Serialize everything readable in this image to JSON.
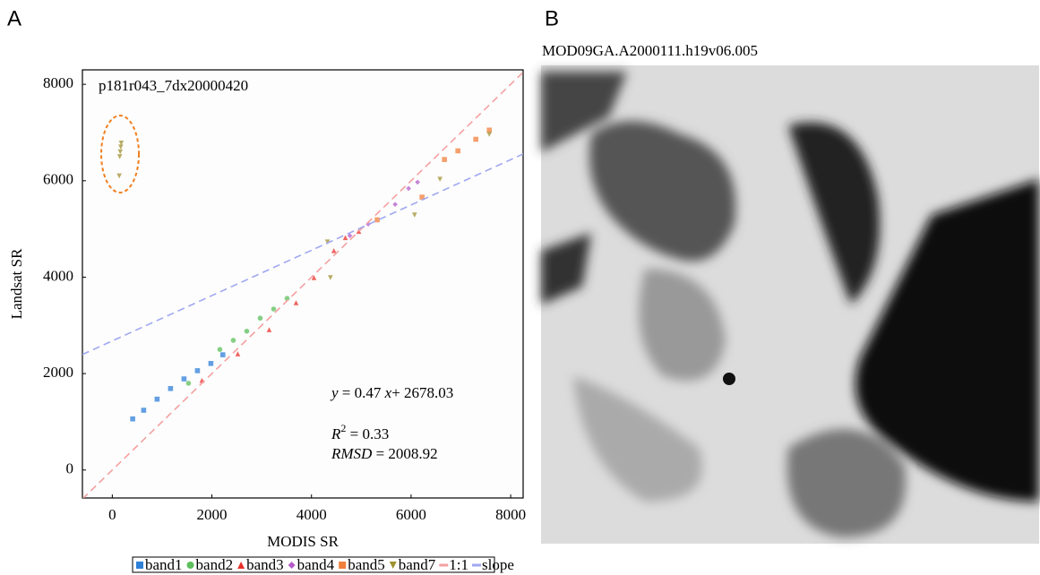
{
  "panels": {
    "a_label": "A",
    "b_label": "B"
  },
  "chart_data": {
    "type": "scatter",
    "annotation": "p181r043_7dx20000420",
    "xlabel": "MODIS SR",
    "ylabel": "Landsat SR",
    "xlim": [
      -600,
      8250
    ],
    "ylim": [
      -580,
      8300
    ],
    "xticks": [
      0,
      2000,
      4000,
      6000,
      8000
    ],
    "yticks": [
      0,
      2000,
      4000,
      6000,
      8000
    ],
    "equation": [
      "y",
      " = 0.47 ",
      "x",
      "+ 2678.03"
    ],
    "r2": [
      "R",
      "2",
      " = 0.33"
    ],
    "rmsd": [
      "RMSD",
      " = 2008.92"
    ],
    "legend": "bottom",
    "series": [
      {
        "name": "band1",
        "color": "#2f7fd8",
        "marker": "square",
        "x": [
          410,
          630,
          900,
          1170,
          1440,
          1710,
          1980,
          2220
        ],
        "values": [
          1060,
          1240,
          1470,
          1690,
          1890,
          2060,
          2210,
          2390
        ]
      },
      {
        "name": "band2",
        "color": "#5cbf5c",
        "marker": "circle",
        "x": [
          1530,
          2160,
          2430,
          2700,
          2970,
          3240,
          3510
        ],
        "values": [
          1800,
          2500,
          2690,
          2880,
          3150,
          3340,
          3560
        ]
      },
      {
        "name": "band3",
        "color": "#e8302a",
        "marker": "triangle",
        "x": [
          1800,
          2520,
          3150,
          3690,
          4050,
          4450,
          4680,
          4950
        ],
        "values": [
          1860,
          2410,
          2910,
          3470,
          3990,
          4550,
          4820,
          4950
        ]
      },
      {
        "name": "band4",
        "color": "#b45ac8",
        "marker": "diamond",
        "x": [
          4770,
          5140,
          5680,
          5950,
          6130
        ],
        "values": [
          4860,
          5100,
          5510,
          5840,
          5970
        ]
      },
      {
        "name": "band5",
        "color": "#f07f3c",
        "marker": "square",
        "x": [
          5320,
          6220,
          6670,
          6940,
          7300,
          7570
        ],
        "values": [
          5190,
          5660,
          6440,
          6620,
          6860,
          7050
        ]
      },
      {
        "name": "band7",
        "color": "#a09030",
        "marker": "triangle-down",
        "x": [
          140,
          150,
          160,
          170,
          180,
          4320,
          4380,
          6070,
          6580,
          7570
        ],
        "values": [
          6100,
          6500,
          6600,
          6700,
          6780,
          4730,
          3990,
          5290,
          6030,
          6960
        ]
      },
      {
        "name": "1:1",
        "color": "#f4a0a0",
        "marker": "line",
        "x": [
          -600,
          8250
        ],
        "values": [
          -600,
          8250
        ]
      },
      {
        "name": "slope",
        "color": "#a0a8f0",
        "marker": "line",
        "x": [
          -600,
          8250
        ],
        "values": [
          2396,
          6555
        ]
      }
    ]
  },
  "image": {
    "title": "MOD09GA.A2000111.h19v06.005"
  }
}
